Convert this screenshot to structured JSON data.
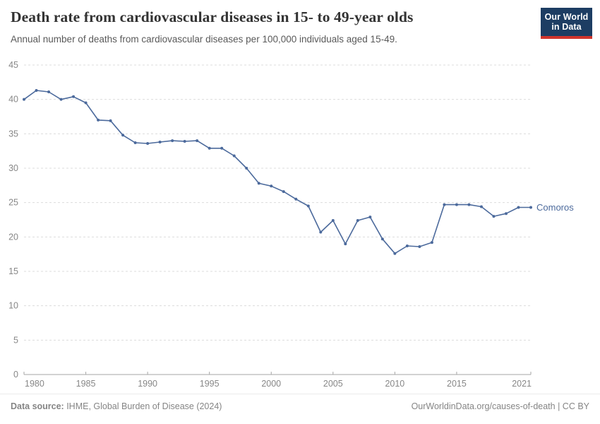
{
  "header": {
    "title": "Death rate from cardiovascular diseases in 15- to 49-year olds",
    "subtitle": "Annual number of deaths from cardiovascular diseases per 100,000 individuals aged 15-49.",
    "logo": {
      "line1": "Our World",
      "line2": "in Data",
      "bg_color": "#1d3d63",
      "bar_color": "#d0342c"
    }
  },
  "chart_data": {
    "type": "line",
    "title": "Death rate from cardiovascular diseases in 15- to 49-year olds",
    "xlabel": "",
    "ylabel": "",
    "xlim": [
      1980,
      2021
    ],
    "ylim": [
      0,
      45
    ],
    "x_ticks": [
      1980,
      1985,
      1990,
      1995,
      2000,
      2005,
      2010,
      2015,
      2021
    ],
    "y_ticks": [
      0,
      5,
      10,
      15,
      20,
      25,
      30,
      35,
      40,
      45
    ],
    "grid": "horizontal-dashed",
    "legend_position": "end-of-line-label",
    "series": [
      {
        "name": "Comoros",
        "color": "#4C6A9C",
        "x": [
          1980,
          1981,
          1982,
          1983,
          1984,
          1985,
          1986,
          1987,
          1988,
          1989,
          1990,
          1991,
          1992,
          1993,
          1994,
          1995,
          1996,
          1997,
          1998,
          1999,
          2000,
          2001,
          2002,
          2003,
          2004,
          2005,
          2006,
          2007,
          2008,
          2009,
          2010,
          2011,
          2012,
          2013,
          2014,
          2015,
          2016,
          2017,
          2018,
          2019,
          2020,
          2021
        ],
        "values": [
          40.0,
          41.3,
          41.1,
          40.0,
          40.4,
          39.5,
          37.0,
          36.9,
          34.8,
          33.7,
          33.6,
          33.8,
          34.0,
          33.9,
          34.0,
          32.9,
          32.9,
          31.8,
          30.0,
          27.8,
          27.4,
          26.6,
          25.5,
          24.5,
          20.7,
          22.4,
          19.0,
          22.4,
          22.9,
          19.7,
          17.6,
          18.7,
          18.6,
          19.2,
          24.7,
          24.7,
          24.7,
          24.4,
          23.0,
          23.4,
          24.3,
          24.3
        ]
      }
    ],
    "colors": {
      "gridline": "#dcdcdc",
      "axis": "#a6a6a6",
      "tick_label": "#878787"
    }
  },
  "footer": {
    "source_label": "Data source:",
    "source_text": " IHME, Global Burden of Disease (2024)",
    "credit": "OurWorldinData.org/causes-of-death | CC BY"
  }
}
